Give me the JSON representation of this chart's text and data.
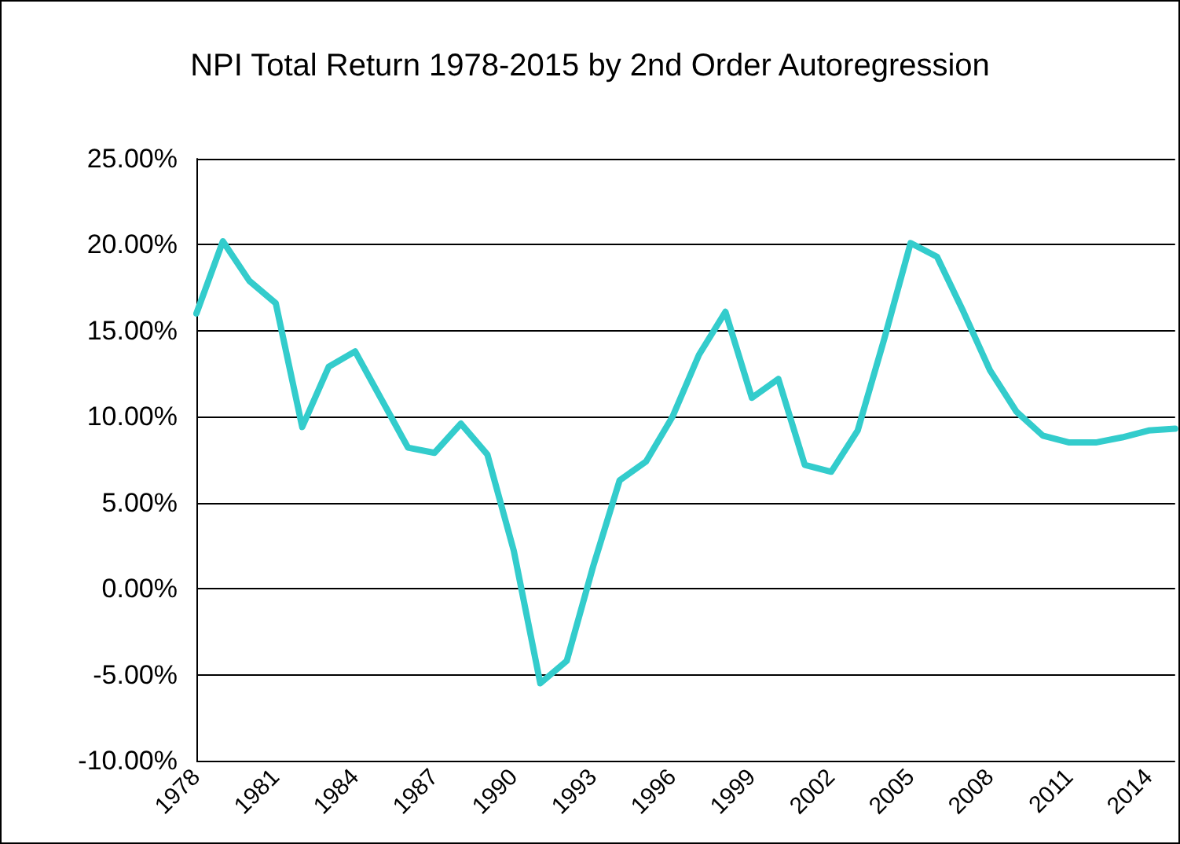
{
  "chart_data": {
    "type": "line",
    "title": "NPI Total Return 1978-2015 by 2nd Order Autoregression",
    "categories": [
      "1978",
      null,
      null,
      "1981",
      null,
      null,
      "1984",
      null,
      null,
      "1987",
      null,
      null,
      "1990",
      null,
      null,
      "1993",
      null,
      null,
      "1996",
      null,
      null,
      "1999",
      null,
      null,
      "2002",
      null,
      null,
      "2005",
      null,
      null,
      "2008",
      null,
      null,
      "2011",
      null,
      null,
      "2014",
      null
    ],
    "series": [
      {
        "color": "#33cccc",
        "values": [
          16.0,
          20.2,
          17.9,
          16.6,
          9.4,
          12.9,
          13.8,
          11.0,
          8.2,
          7.9,
          9.6,
          7.8,
          2.2,
          -5.5,
          -4.2,
          1.3,
          6.3,
          7.4,
          10.0,
          13.6,
          16.1,
          11.1,
          12.2,
          7.2,
          6.8,
          9.2,
          14.5,
          20.1,
          19.3,
          16.1,
          12.7,
          10.3,
          8.9,
          8.5,
          8.5,
          8.8,
          9.2,
          9.3
        ]
      }
    ],
    "ylim": [
      -10,
      25
    ],
    "yticks": [
      {
        "value": -10,
        "label": "-10.00%"
      },
      {
        "value": -5,
        "label": "-5.00%"
      },
      {
        "value": 0,
        "label": "0.00%"
      },
      {
        "value": 5,
        "label": "5.00%"
      },
      {
        "value": 10,
        "label": "10.00%"
      },
      {
        "value": 15,
        "label": "15.00%"
      },
      {
        "value": 20,
        "label": "20.00%"
      },
      {
        "value": 25,
        "label": "25.00%"
      }
    ],
    "grid": "y",
    "marker": "none",
    "line_style": "solid"
  }
}
